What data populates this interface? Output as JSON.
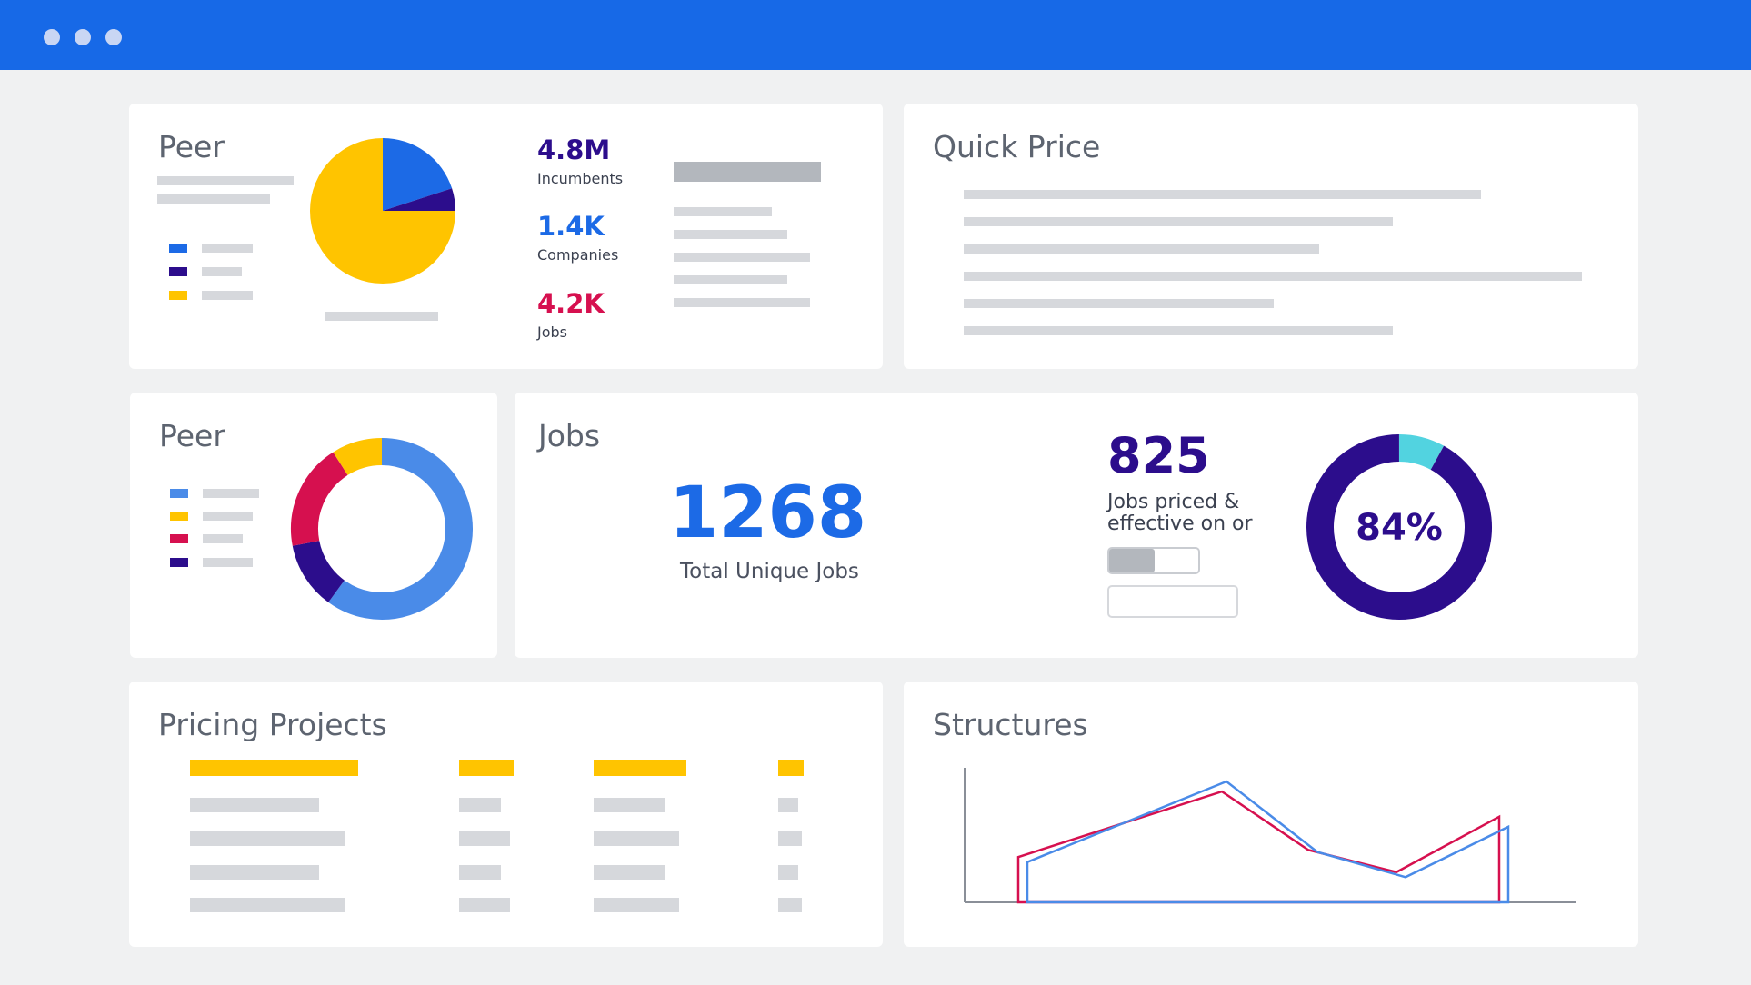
{
  "window": {
    "dots": [
      "window-dot",
      "window-dot",
      "window-dot"
    ]
  },
  "colors": {
    "topbar": "#1769e7",
    "blue": "#1c6ae6",
    "light_blue": "#4a8be8",
    "indigo": "#2c0d8c",
    "yellow": "#ffc400",
    "crimson": "#d6104f",
    "cyan": "#52d3e0"
  },
  "peer_card_1": {
    "title": "Peer",
    "pie": [
      {
        "label": "blue",
        "value": 20,
        "color": "#1c6ae6"
      },
      {
        "label": "indigo",
        "value": 5,
        "color": "#2c0d8c"
      },
      {
        "label": "yellow",
        "value": 75,
        "color": "#ffc400"
      }
    ],
    "stats": [
      {
        "value": "4.8M",
        "label": "Incumbents",
        "color": "#2c0d8c"
      },
      {
        "value": "1.4K",
        "label": "Companies",
        "color": "#1c6ae6"
      },
      {
        "value": "4.2K",
        "label": "Jobs",
        "color": "#d6104f"
      }
    ]
  },
  "quick_price": {
    "title": "Quick Price"
  },
  "peer_card_2": {
    "title": "Peer",
    "donut": [
      {
        "label": "light-blue",
        "value": 60,
        "color": "#4a8be8"
      },
      {
        "label": "indigo",
        "value": 12,
        "color": "#2c0d8c"
      },
      {
        "label": "crimson",
        "value": 19,
        "color": "#d6104f"
      },
      {
        "label": "yellow",
        "value": 9,
        "color": "#ffc400"
      }
    ]
  },
  "jobs_card": {
    "title": "Jobs",
    "total_value": "1268",
    "total_label": "Total Unique Jobs",
    "priced_value": "825",
    "priced_label_line1": "Jobs priced &",
    "priced_label_line2": "effective on or",
    "percent_label": "84%",
    "percent": 84
  },
  "pricing_projects": {
    "title": "Pricing Projects"
  },
  "structures": {
    "title": "Structures",
    "chart_data": {
      "type": "line",
      "series": [
        {
          "color": "#d6104f",
          "values": [
            0,
            45,
            110,
            52,
            30,
            85
          ]
        },
        {
          "color": "#4a8be8",
          "values": [
            0,
            40,
            120,
            50,
            25,
            75
          ]
        }
      ]
    }
  }
}
